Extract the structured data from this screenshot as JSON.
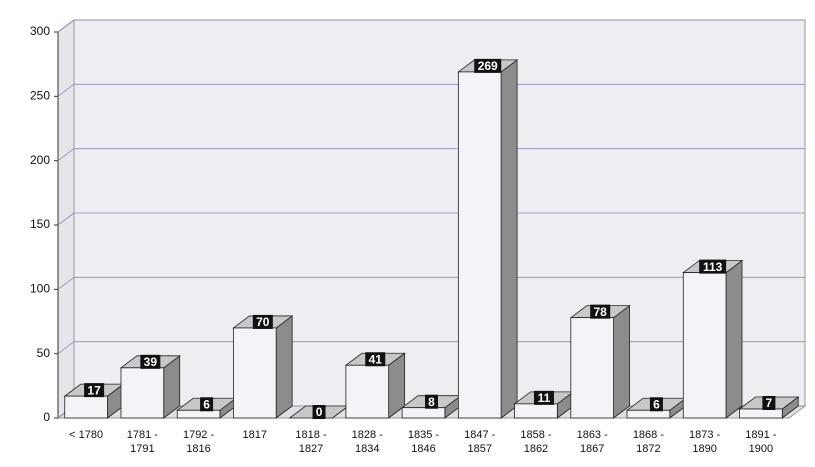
{
  "chart_data": {
    "type": "bar3d",
    "categories": [
      "< 1780",
      "1781 - 1791",
      "1792 - 1816",
      "1817",
      "1818 - 1827",
      "1828 - 1834",
      "1835 - 1846",
      "1847 - 1857",
      "1858 - 1862",
      "1863 - 1867",
      "1868 - 1872",
      "1873 - 1890",
      "1891 - 1900"
    ],
    "values": [
      17,
      39,
      6,
      70,
      0,
      41,
      8,
      269,
      11,
      78,
      6,
      113,
      7
    ],
    "color": "#f4f4f8",
    "ylim": [
      0,
      300
    ],
    "yticks": [
      0,
      50,
      100,
      150,
      200,
      250,
      300
    ],
    "grid": true
  }
}
